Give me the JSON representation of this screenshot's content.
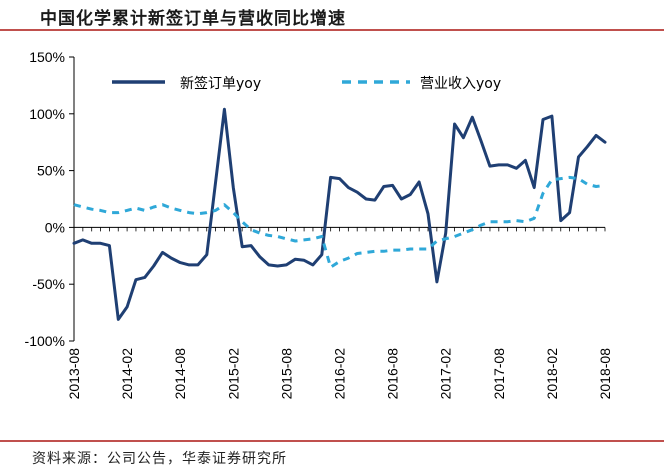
{
  "title": "中国化学累计新签订单与营收同比增速",
  "source": "资料来源：公司公告，华泰证券研究所",
  "colors": {
    "orders": "#1f3f73",
    "revenue": "#2fa8d8",
    "rule": "#c0504d"
  },
  "chart_data": {
    "type": "line",
    "title": "中国化学累计新签订单与营收同比增速",
    "xlabel": "",
    "ylabel": "",
    "ylim": [
      -100,
      150
    ],
    "yticks": [
      -100,
      -50,
      0,
      50,
      100,
      150
    ],
    "ytick_labels": [
      "-100%",
      "-50%",
      "0%",
      "50%",
      "100%",
      "150%"
    ],
    "x_start": "2013-08",
    "x_end": "2018-09",
    "xtick_labels": [
      "2013-08",
      "2014-02",
      "2014-08",
      "2015-02",
      "2015-08",
      "2016-02",
      "2016-08",
      "2017-02",
      "2017-08",
      "2018-02",
      "2018-08"
    ],
    "grid": false,
    "legend": "top",
    "series": [
      {
        "name": "新签订单yoy",
        "style": "solid",
        "values": [
          -14,
          -11,
          -14,
          -14,
          -16,
          -81,
          -70,
          -46,
          -44,
          -34,
          -22,
          -27,
          -31,
          -33,
          -33,
          -24,
          40,
          104,
          35,
          -17,
          -16,
          -26,
          -33,
          -34,
          -33,
          -28,
          -29,
          -33,
          -24,
          44,
          43,
          35,
          31,
          25,
          24,
          36,
          37,
          25,
          29,
          40,
          12,
          -48,
          -5,
          91,
          79,
          97,
          76,
          54,
          55,
          55,
          52,
          59,
          35,
          95,
          98,
          6,
          13,
          62,
          71,
          81,
          75
        ]
      },
      {
        "name": "营业收入yoy",
        "style": "dashed",
        "values": [
          20,
          18,
          16,
          15,
          13,
          13,
          15,
          17,
          15,
          18,
          20,
          17,
          15,
          13,
          12,
          13,
          15,
          20,
          13,
          5,
          -2,
          -5,
          -7,
          -8,
          -10,
          -12,
          -11,
          -10,
          -8,
          -35,
          -30,
          -27,
          -23,
          -22,
          -21,
          -21,
          -20,
          -20,
          -19,
          -19,
          -19,
          -12,
          -10,
          -8,
          -5,
          -2,
          2,
          5,
          5,
          5,
          6,
          5,
          8,
          30,
          42,
          43,
          44,
          43,
          38,
          36,
          37
        ]
      }
    ]
  }
}
